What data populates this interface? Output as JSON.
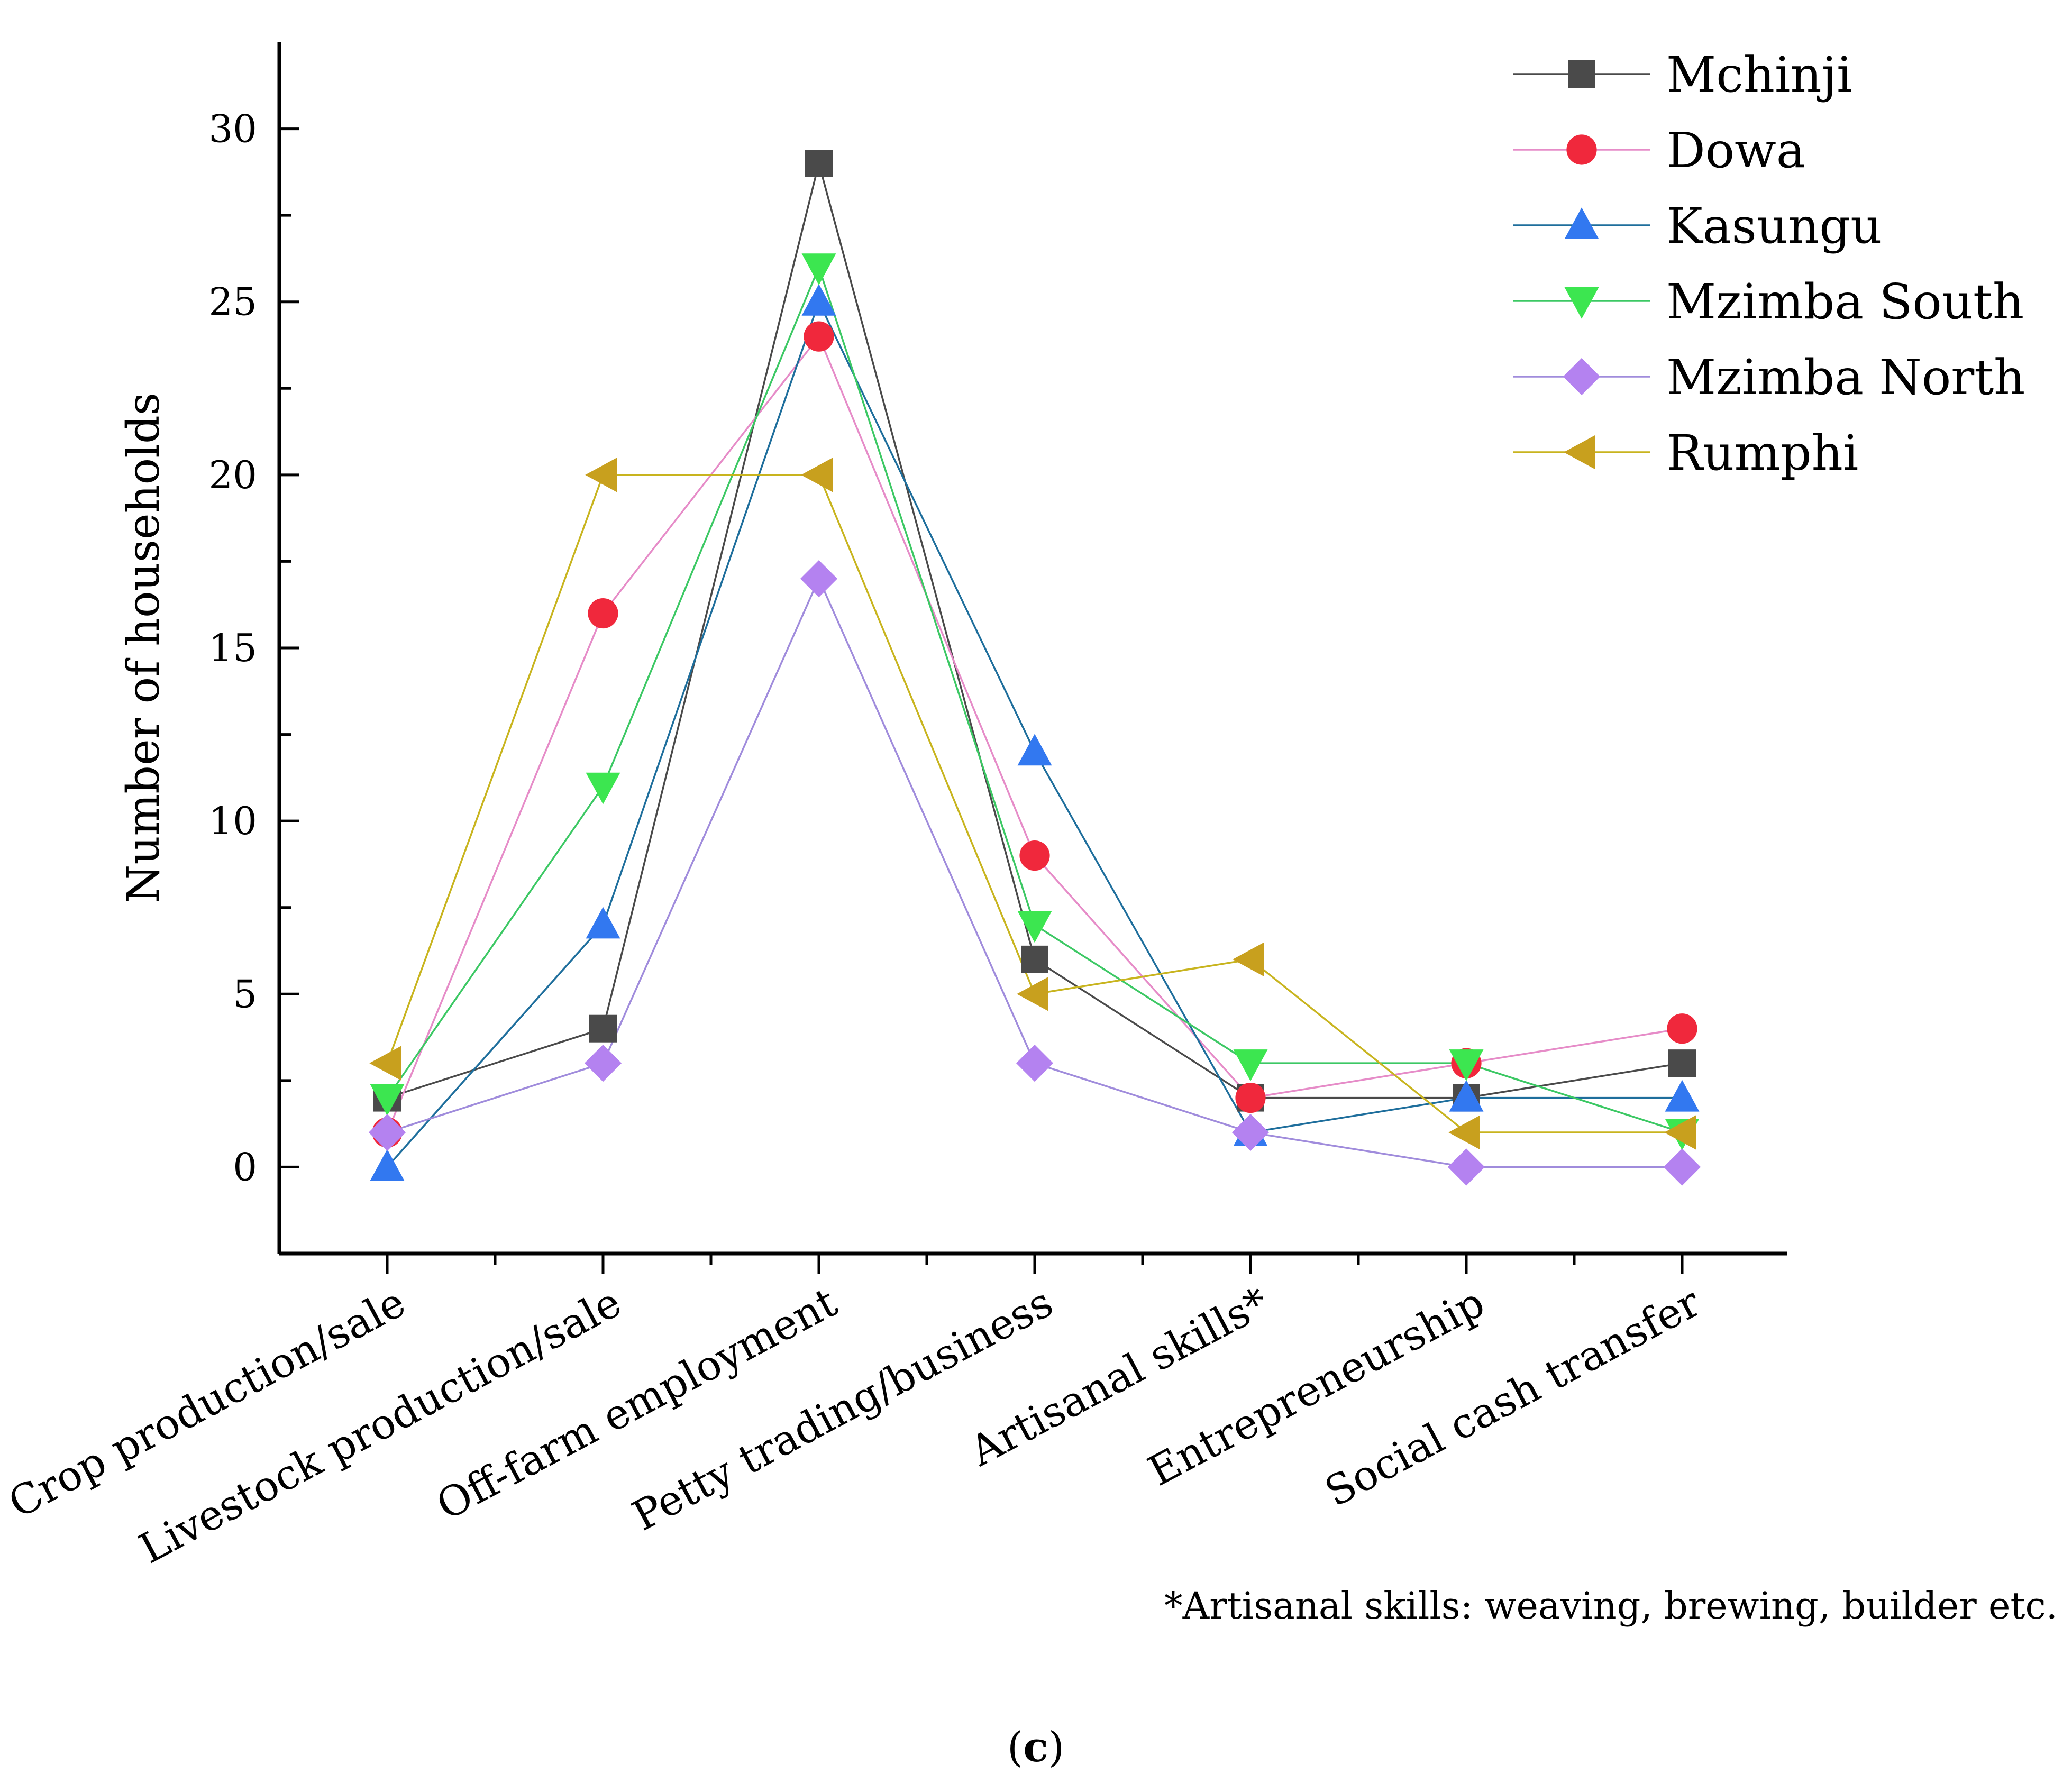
{
  "chart_data": {
    "type": "line",
    "title": "",
    "xlabel": "",
    "ylabel": "Number of households",
    "ylim": [
      -2.5,
      32.5
    ],
    "yticks": [
      0,
      5,
      10,
      15,
      20,
      25,
      30
    ],
    "grid": false,
    "legend_position": "top-right",
    "categories": [
      "Crop production/sale",
      "Livestock production/sale",
      "Off-farm employment",
      "Petty trading/business",
      "Artisanal skills*",
      "Entrepreneurship",
      "Social cash transfer"
    ],
    "series": [
      {
        "name": "Mchinji",
        "marker": "square",
        "color": "#4a4a4a",
        "values": [
          2,
          4,
          29,
          6,
          2,
          2,
          3
        ]
      },
      {
        "name": "Dowa",
        "marker": "circle",
        "color": "#f0283c",
        "values": [
          1,
          16,
          24,
          9,
          2,
          3,
          4
        ]
      },
      {
        "name": "Kasungu",
        "marker": "triangle-up",
        "color": "#3278f0",
        "values": [
          0,
          7,
          25,
          12,
          1,
          2,
          2
        ]
      },
      {
        "name": "Mzimba South",
        "marker": "triangle-down",
        "color": "#3ce650",
        "values": [
          2,
          11,
          26,
          7,
          3,
          3,
          1
        ]
      },
      {
        "name": "Mzimba North",
        "marker": "diamond",
        "color": "#b482f0",
        "values": [
          1,
          3,
          17,
          3,
          1,
          0,
          0
        ]
      },
      {
        "name": "Rumphi",
        "marker": "triangle-left",
        "color": "#c8a01e",
        "values": [
          3,
          20,
          20,
          5,
          6,
          1,
          1
        ]
      }
    ],
    "line_colors": {
      "Mchinji": "#4a4a4a",
      "Dowa": "#e68cc8",
      "Kasungu": "#1e6e9c",
      "Mzimba South": "#3cc864",
      "Mzimba North": "#a08cdc",
      "Rumphi": "#c8b41e"
    },
    "footnote": "*Artisanal skills: weaving, brewing, builder etc.",
    "caption_open": "(",
    "caption_letter": "c",
    "caption_close": ")"
  }
}
